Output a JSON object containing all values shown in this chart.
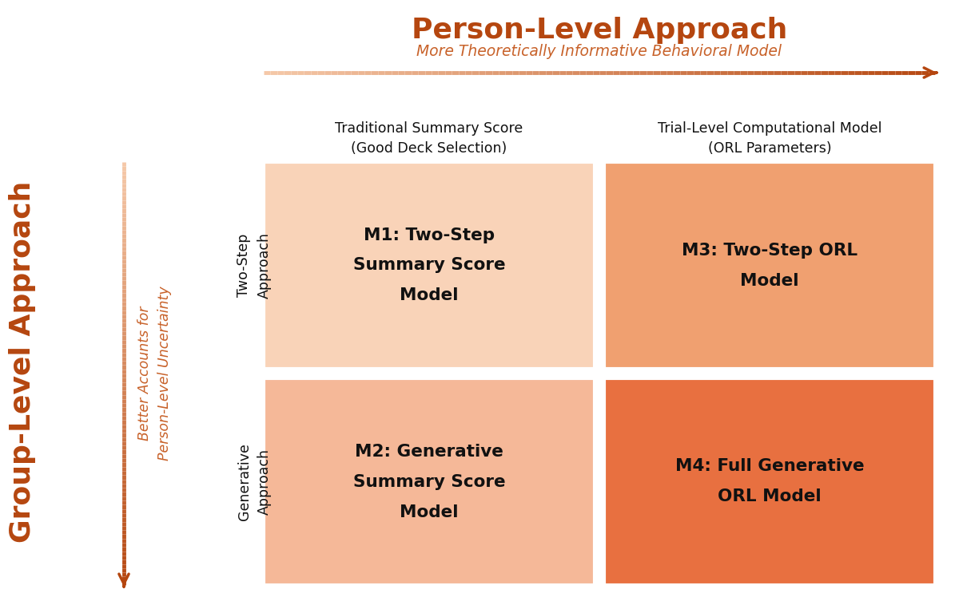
{
  "title_main": "Person-Level Approach",
  "title_main_color": "#b5460f",
  "subtitle_horiz": "More Theoretically Informative Behavioral Model",
  "subtitle_horiz_color": "#c8622a",
  "title_vert": "Group-Level Approach",
  "title_vert_color": "#b5460f",
  "subtitle_vert": "Better Accounts for\nPerson-Level Uncertainty",
  "subtitle_vert_color": "#c8622a",
  "col_headers": [
    "Traditional Summary Score\n(Good Deck Selection)",
    "Trial-Level Computational Model\n(ORL Parameters)"
  ],
  "row_headers": [
    "Two-Step\nApproach",
    "Generative\nApproach"
  ],
  "cells": [
    {
      "label": "M1:",
      "line1": "Two-Step",
      "line2": "Summary Score",
      "line3": "Model",
      "color": "#f9d3b8"
    },
    {
      "label": "M3:",
      "line1": "Two-Step ORL",
      "line2": "Model",
      "line3": "",
      "color": "#f0a070"
    },
    {
      "label": "M2:",
      "line1": "Generative",
      "line2": "Summary Score",
      "line3": "Model",
      "color": "#f5b898"
    },
    {
      "label": "M4:",
      "line1": "Full Generative",
      "line2": "ORL Model",
      "line3": "",
      "color": "#e87040"
    }
  ],
  "cell_text_color": "#111111",
  "background_color": "#ffffff",
  "arrow_dark_color": "#b5460f",
  "arrow_light_color": "#f5c8a8",
  "col_header_color": "#111111",
  "row_header_color": "#111111"
}
